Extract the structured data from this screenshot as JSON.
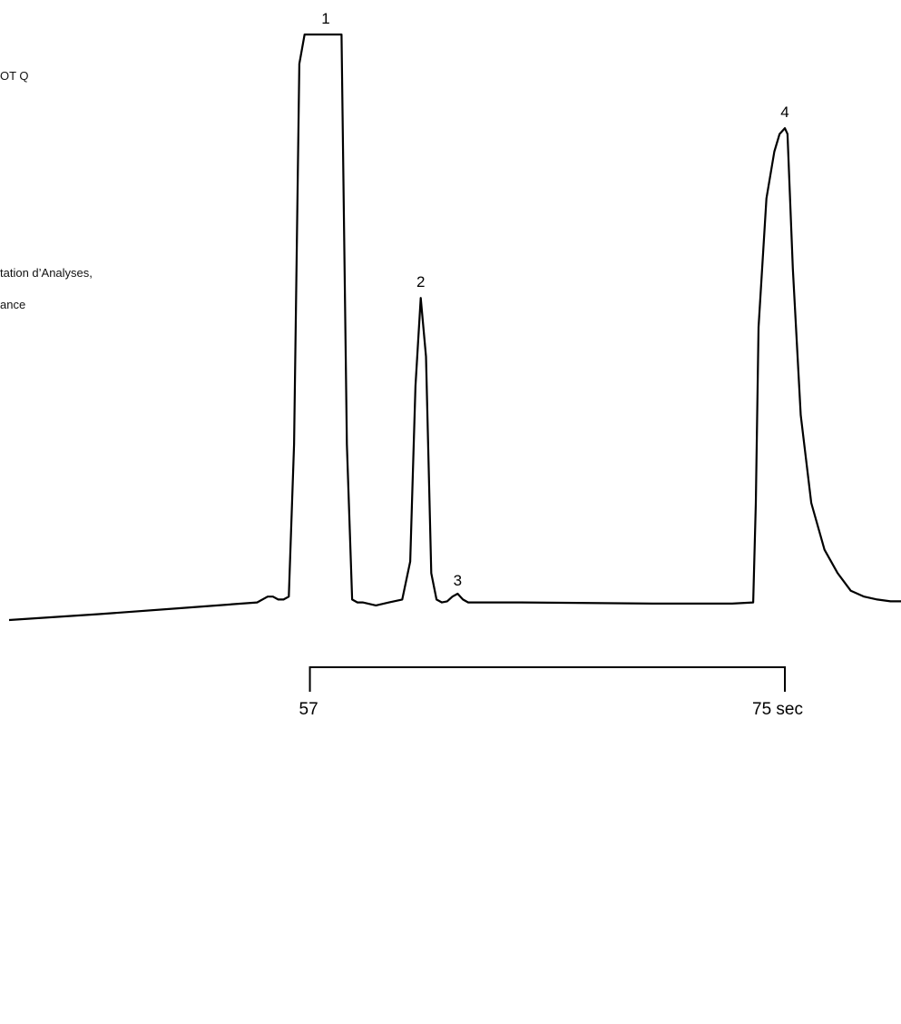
{
  "side_text": {
    "line1": "OT Q",
    "line2": "tation d’Analyses,",
    "line3": "ance"
  },
  "chart_data": {
    "type": "line",
    "title": "",
    "xlabel": "",
    "ylabel": "",
    "x_unit": "sec",
    "x_scale_bar": {
      "start": 57,
      "end": 75,
      "start_label": "57",
      "end_label": "75 sec"
    },
    "xlim": [
      45.6,
      79.4
    ],
    "ylim": [
      0,
      1.0
    ],
    "grid": false,
    "legend": "none",
    "line_color": "#000000",
    "peaks": [
      {
        "label": "1",
        "apex_time": 57.6,
        "height": 1.0,
        "note": "off-scale (flat-topped)"
      },
      {
        "label": "2",
        "apex_time": 61.2,
        "height": 0.55
      },
      {
        "label": "3",
        "apex_time": 62.6,
        "height": 0.04
      },
      {
        "label": "4",
        "apex_time": 75.0,
        "height": 0.84
      }
    ],
    "series": [
      {
        "x": [
          45.6,
          49.0,
          52.0,
          55.0,
          55.4,
          55.6,
          55.8,
          56.0,
          56.2,
          56.4,
          56.6,
          56.8,
          57.6,
          58.2,
          58.4,
          58.6,
          58.8,
          59.0,
          59.5,
          60.0,
          60.5,
          60.8,
          61.0,
          61.2,
          61.4,
          61.6,
          61.8,
          62.0,
          62.2,
          62.4,
          62.6,
          62.8,
          63.0,
          63.5,
          65.0,
          70.0,
          73.0,
          73.8,
          73.9,
          74.0,
          74.3,
          74.6,
          74.8,
          75.0,
          75.1,
          75.3,
          75.6,
          76.0,
          76.5,
          77.0,
          77.5,
          78.0,
          78.5,
          79.0,
          79.4
        ],
        "y": [
          0.0,
          0.01,
          0.02,
          0.03,
          0.04,
          0.04,
          0.035,
          0.035,
          0.04,
          0.3,
          0.95,
          1.0,
          1.0,
          1.0,
          0.3,
          0.035,
          0.03,
          0.03,
          0.025,
          0.03,
          0.035,
          0.1,
          0.4,
          0.55,
          0.45,
          0.08,
          0.035,
          0.03,
          0.032,
          0.04,
          0.045,
          0.035,
          0.03,
          0.03,
          0.03,
          0.028,
          0.028,
          0.03,
          0.2,
          0.5,
          0.72,
          0.8,
          0.83,
          0.84,
          0.83,
          0.6,
          0.35,
          0.2,
          0.12,
          0.08,
          0.05,
          0.04,
          0.035,
          0.032,
          0.032
        ]
      }
    ]
  }
}
